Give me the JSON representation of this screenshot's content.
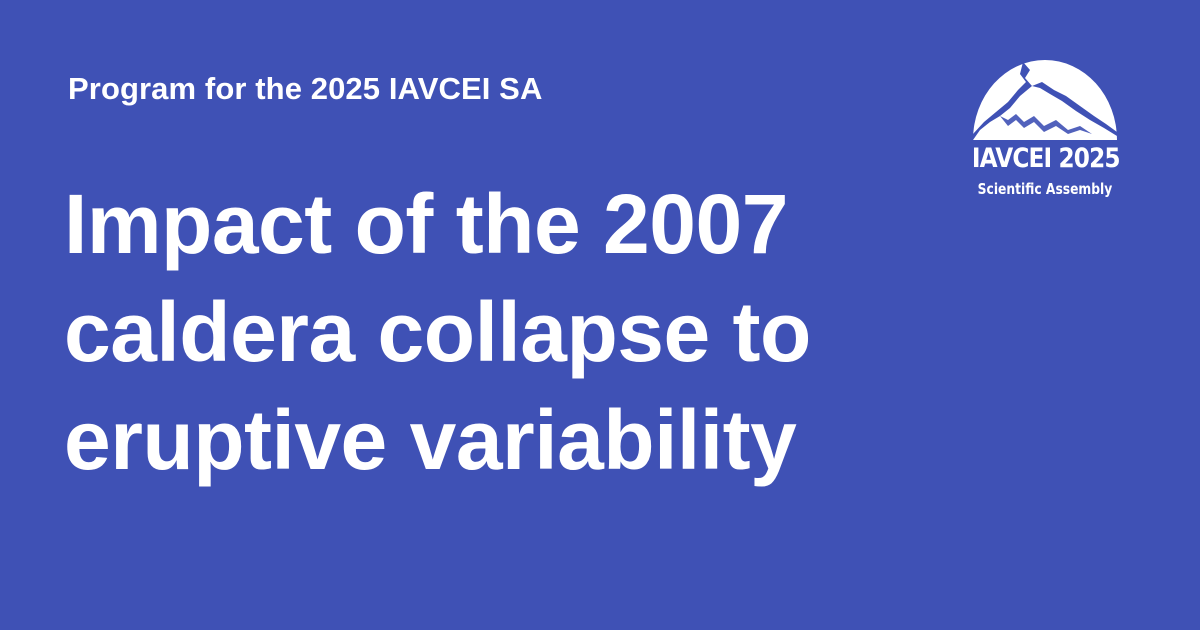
{
  "card": {
    "kicker": "Program for the 2025 IAVCEI SA",
    "title_lines": [
      "Impact of the 2007",
      "caldera collapse to",
      "eruptive variability"
    ]
  },
  "logo": {
    "icon": "volcano-dome-logo-icon",
    "name": "IAVCEI 2025",
    "subtitle": "Scientific Assembly"
  },
  "colors": {
    "background": "#3f51b5",
    "text": "#ffffff"
  }
}
